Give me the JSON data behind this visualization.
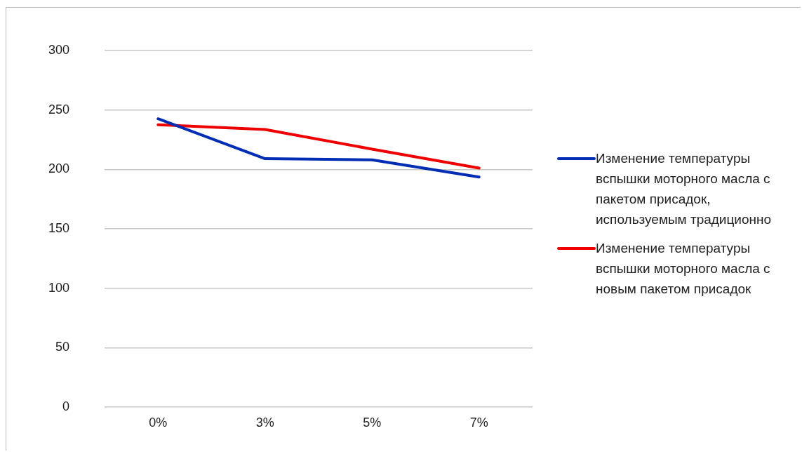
{
  "chart_data": {
    "type": "line",
    "categories": [
      "0%",
      "3%",
      "5%",
      "7%"
    ],
    "series": [
      {
        "name": "Изменение температуры вспышки моторного масла с пакетом присадок, используемым традиционно",
        "color": "#002db3",
        "values": [
          242.5,
          209,
          208,
          193.5
        ]
      },
      {
        "name": "Изменение температуры вспышки моторного масла с новым пакетом присадок",
        "color": "#ee0000",
        "values": [
          237.5,
          233.5,
          217,
          201
        ]
      }
    ],
    "ylim": [
      0,
      300
    ],
    "yticks": [
      0,
      50,
      100,
      150,
      200,
      250,
      300
    ],
    "grid": "y",
    "legend": "right",
    "marker": "none",
    "line_style": "solid"
  }
}
